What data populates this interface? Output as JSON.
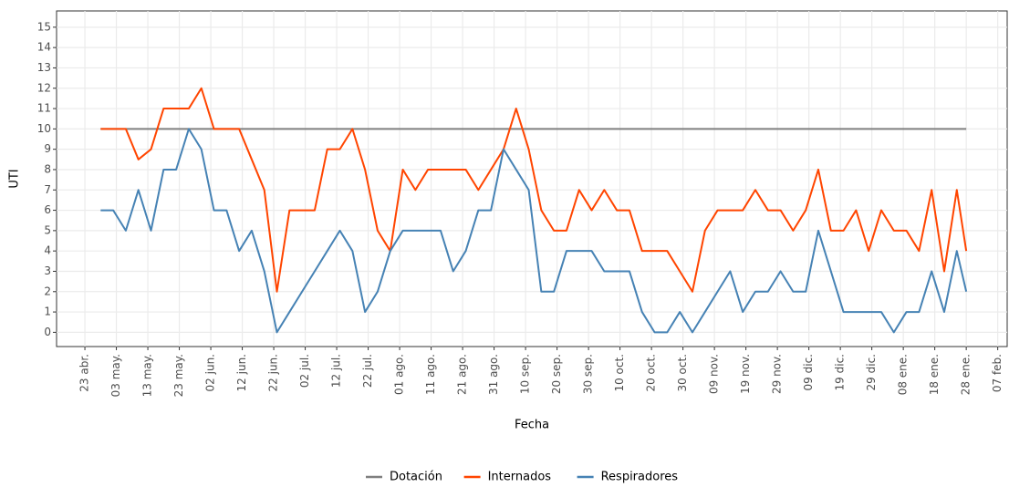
{
  "chart_data": {
    "type": "line",
    "xlabel": "Fecha",
    "ylabel": "UTI",
    "legend": "bottom",
    "grid": true,
    "x": [
      "--04-28",
      "--05-02",
      "--05-06",
      "--05-10",
      "--05-14",
      "--05-18",
      "--05-22",
      "--05-26",
      "--05-30",
      "--06-03",
      "--06-07",
      "--06-11",
      "--06-15",
      "--06-19",
      "--06-23",
      "--06-27",
      "--07-01",
      "--07-05",
      "--07-09",
      "--07-13",
      "--07-17",
      "--07-21",
      "--07-25",
      "--07-29",
      "--08-02",
      "--08-06",
      "--08-10",
      "--08-14",
      "--08-18",
      "--08-22",
      "--08-26",
      "--08-30",
      "--09-03",
      "--09-07",
      "--09-11",
      "--09-15",
      "--09-19",
      "--09-23",
      "--09-27",
      "--10-01",
      "--10-05",
      "--10-09",
      "--10-13",
      "--10-17",
      "--10-21",
      "--10-25",
      "--10-29",
      "--11-02",
      "--11-06",
      "--11-10",
      "--11-14",
      "--11-18",
      "--11-22",
      "--11-26",
      "--11-30",
      "--12-04",
      "--12-08",
      "--12-12",
      "--12-16",
      "--12-20",
      "--12-24",
      "--12-28",
      "--01-01",
      "--01-05",
      "--01-09",
      "--01-13",
      "--01-17",
      "--01-21",
      "--01-25",
      "--01-28"
    ],
    "series": [
      {
        "name": "Dotación",
        "color": "#7f7f7f",
        "values": [
          10,
          10,
          10,
          10,
          10,
          10,
          10,
          10,
          10,
          10,
          10,
          10,
          10,
          10,
          10,
          10,
          10,
          10,
          10,
          10,
          10,
          10,
          10,
          10,
          10,
          10,
          10,
          10,
          10,
          10,
          10,
          10,
          10,
          10,
          10,
          10,
          10,
          10,
          10,
          10,
          10,
          10,
          10,
          10,
          10,
          10,
          10,
          10,
          10,
          10,
          10,
          10,
          10,
          10,
          10,
          10,
          10,
          10,
          10,
          10,
          10,
          10,
          10,
          10,
          10,
          10,
          10,
          10,
          10,
          10
        ]
      },
      {
        "name": "Internados",
        "color": "#ff4500",
        "values": [
          10,
          10,
          10,
          8.5,
          9,
          11,
          11,
          11,
          12,
          10,
          10,
          10,
          8.5,
          7,
          2,
          6,
          6,
          6,
          9,
          9,
          10,
          8,
          5,
          4,
          8,
          7,
          8,
          8,
          8,
          8,
          7,
          8,
          9,
          11,
          9,
          6,
          5,
          5,
          7,
          6,
          7,
          6,
          6,
          4,
          4,
          4,
          3,
          2,
          5,
          6,
          6,
          6,
          7,
          6,
          6,
          5,
          6,
          8,
          5,
          5,
          6,
          4,
          6,
          5,
          5,
          4,
          7,
          3,
          7,
          4
        ]
      },
      {
        "name": "Respiradores",
        "color": "#4682b4",
        "values": [
          6,
          6,
          5,
          7,
          5,
          8,
          8,
          10,
          9,
          6,
          6,
          4,
          5,
          3,
          0,
          1,
          2,
          3,
          4,
          5,
          4,
          1,
          2,
          4,
          5,
          5,
          5,
          5,
          3,
          4,
          6,
          6,
          9,
          8,
          7,
          2,
          2,
          4,
          4,
          4,
          3,
          3,
          3,
          1,
          0,
          0,
          1,
          0,
          1,
          2,
          3,
          1,
          2,
          2,
          3,
          2,
          2,
          5,
          3,
          1,
          1,
          1,
          1,
          0,
          1,
          1,
          3,
          1,
          4,
          2
        ]
      }
    ],
    "xlim": [
      "--04-14",
      "--02-10"
    ],
    "xticks": [
      {
        "value": "--04-23",
        "label": "23 abr."
      },
      {
        "value": "--05-03",
        "label": "03 may."
      },
      {
        "value": "--05-13",
        "label": "13 may."
      },
      {
        "value": "--05-23",
        "label": "23 may."
      },
      {
        "value": "--06-02",
        "label": "02 jun."
      },
      {
        "value": "--06-12",
        "label": "12 jun."
      },
      {
        "value": "--06-22",
        "label": "22 jun."
      },
      {
        "value": "--07-02",
        "label": "02 jul."
      },
      {
        "value": "--07-12",
        "label": "12 jul."
      },
      {
        "value": "--07-22",
        "label": "22 jul."
      },
      {
        "value": "--08-01",
        "label": "01 ago."
      },
      {
        "value": "--08-11",
        "label": "11 ago."
      },
      {
        "value": "--08-21",
        "label": "21 ago."
      },
      {
        "value": "--08-31",
        "label": "31 ago."
      },
      {
        "value": "--09-10",
        "label": "10 sep."
      },
      {
        "value": "--09-20",
        "label": "20 sep."
      },
      {
        "value": "--09-30",
        "label": "30 sep."
      },
      {
        "value": "--10-10",
        "label": "10 oct."
      },
      {
        "value": "--10-20",
        "label": "20 oct."
      },
      {
        "value": "--10-30",
        "label": "30 oct."
      },
      {
        "value": "--11-09",
        "label": "09 nov."
      },
      {
        "value": "--11-19",
        "label": "19 nov."
      },
      {
        "value": "--11-29",
        "label": "29 nov."
      },
      {
        "value": "--12-09",
        "label": "09 dic."
      },
      {
        "value": "--12-19",
        "label": "19 dic."
      },
      {
        "value": "--12-29",
        "label": "29 dic."
      },
      {
        "value": "--01-08",
        "label": "08 ene."
      },
      {
        "value": "--01-18",
        "label": "18 ene."
      },
      {
        "value": "--01-28",
        "label": "28 ene."
      },
      {
        "value": "--02-07",
        "label": "07 feb."
      }
    ],
    "ylim": [
      -0.7,
      15.8
    ],
    "yticks": [
      0,
      1,
      2,
      3,
      4,
      5,
      6,
      7,
      8,
      9,
      10,
      11,
      12,
      13,
      14,
      15
    ]
  }
}
